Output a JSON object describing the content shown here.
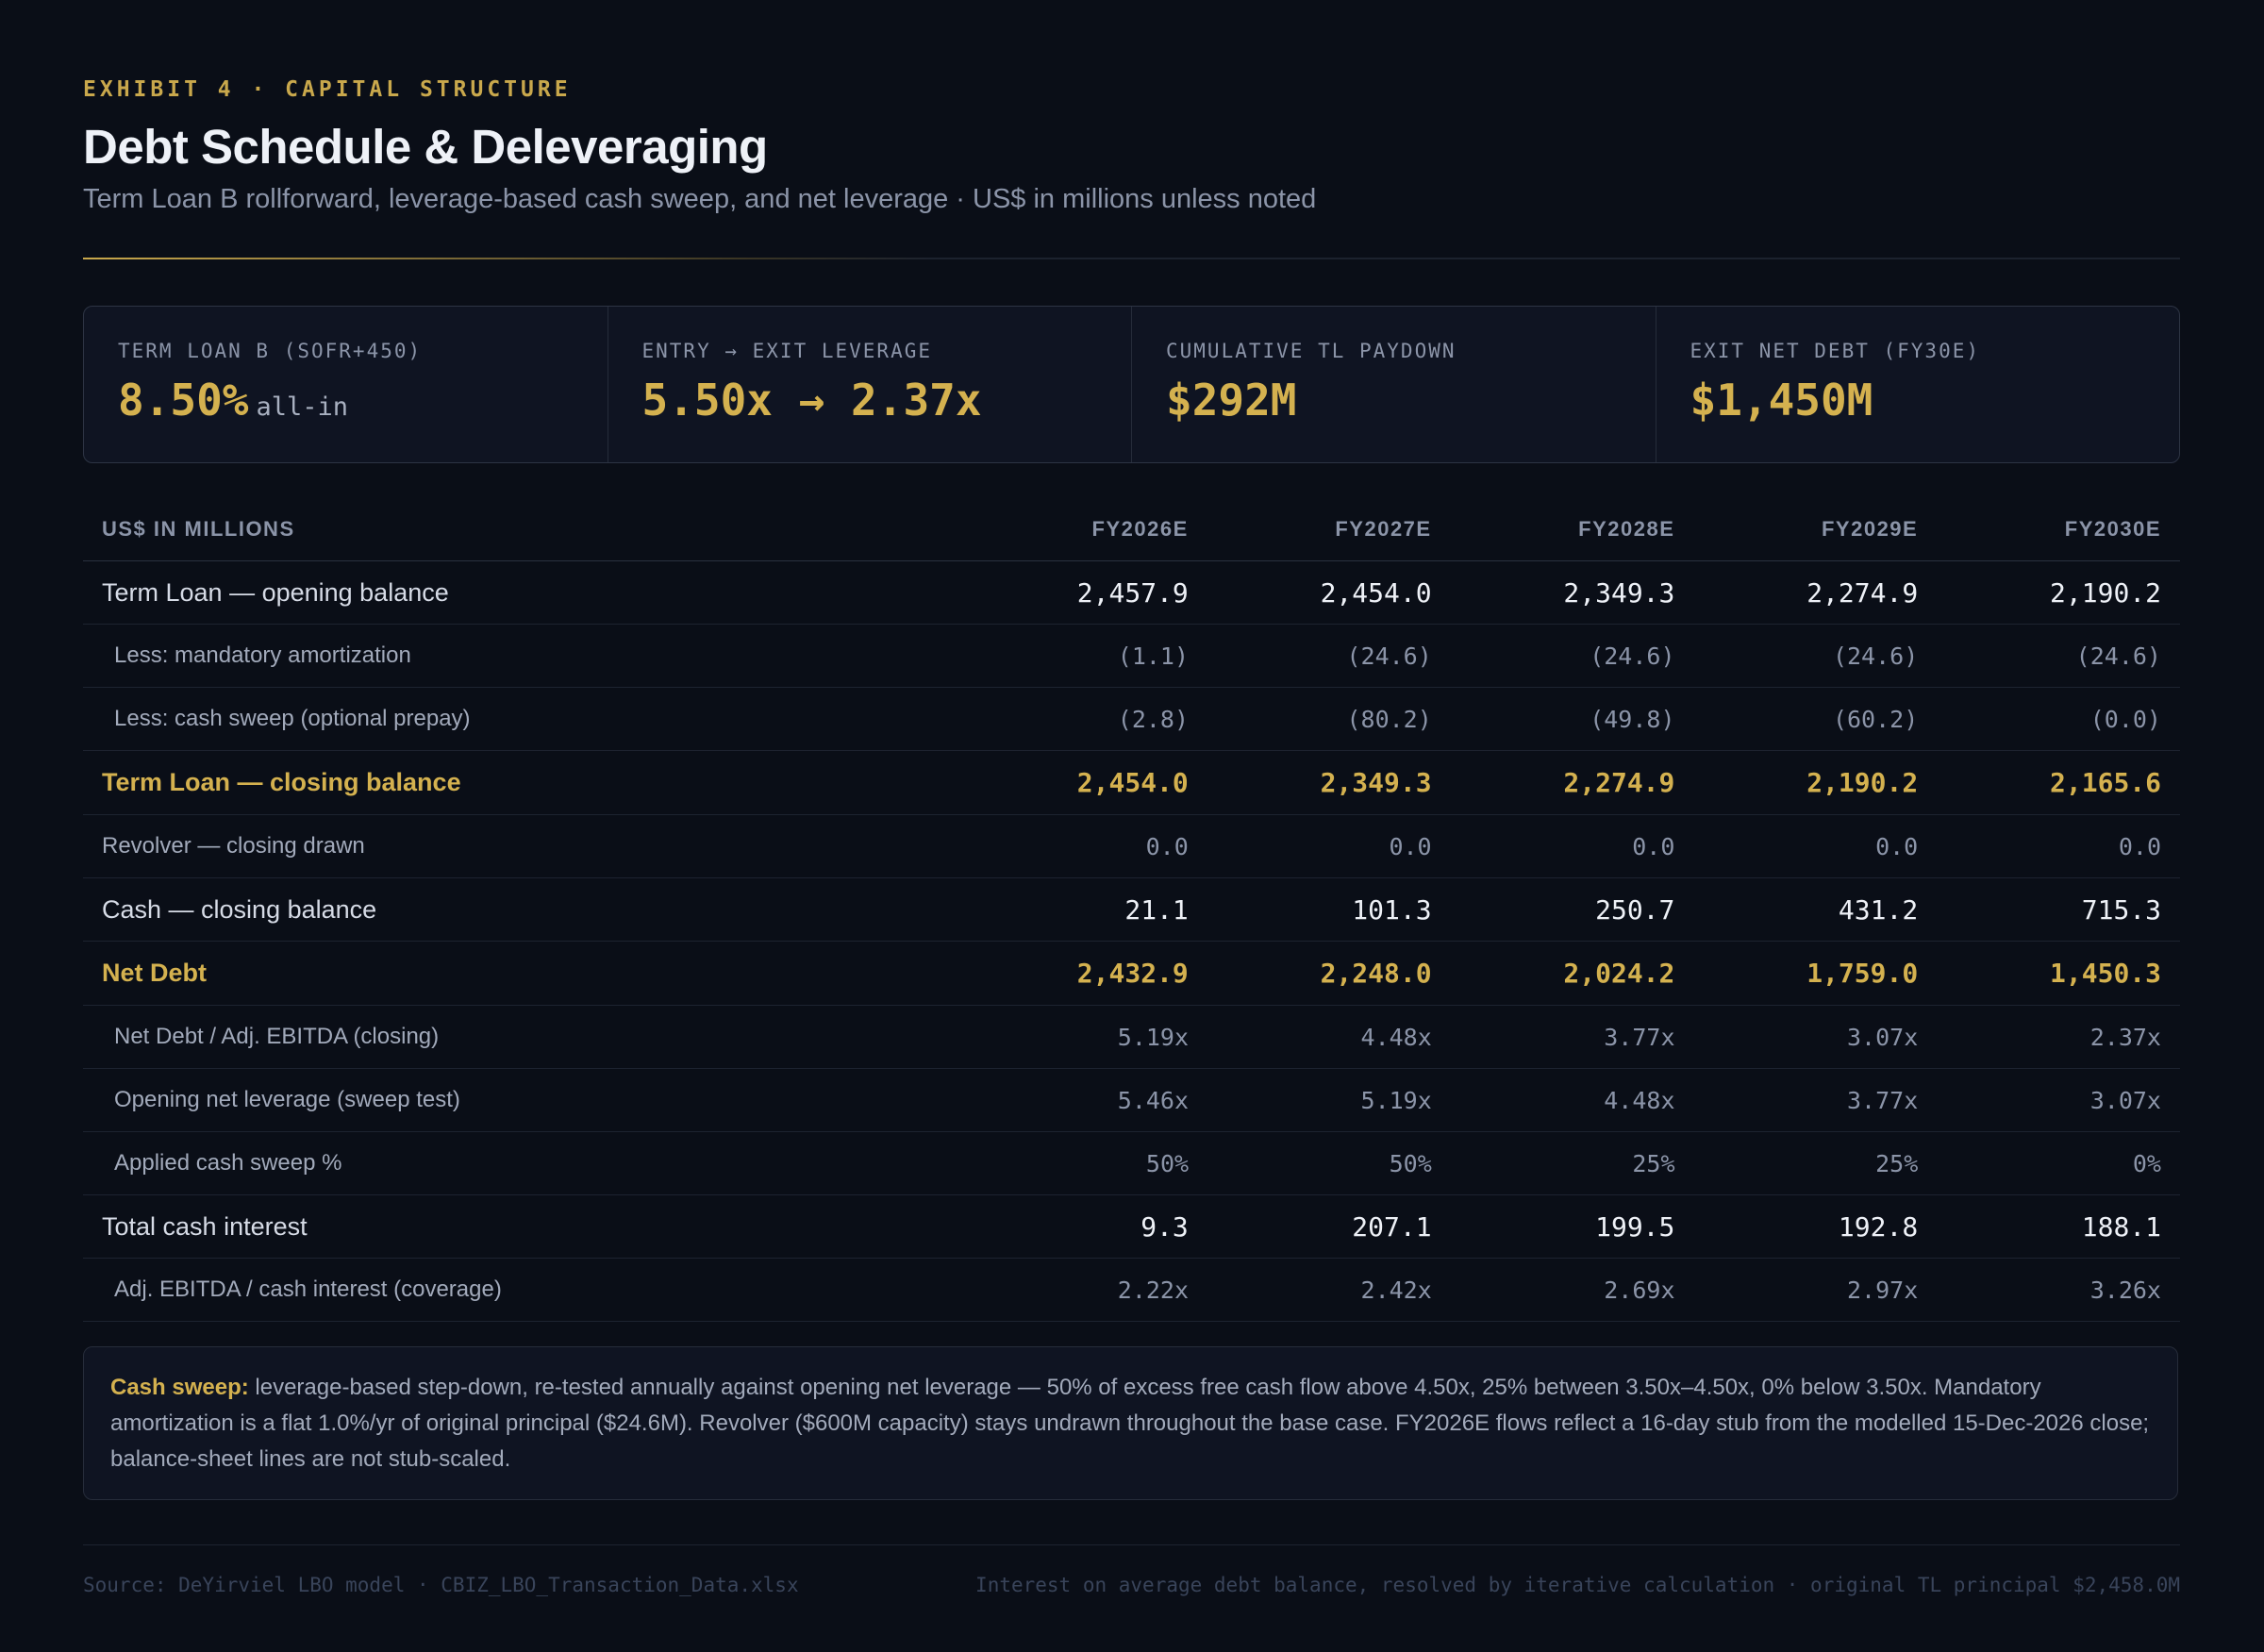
{
  "header": {
    "eyebrow": "EXHIBIT 4 · CAPITAL STRUCTURE",
    "title": "Debt Schedule & Deleveraging",
    "subtitle": "Term Loan B rollforward, leverage-based cash sweep, and net leverage · US$ in millions unless noted"
  },
  "kpis": [
    {
      "label": "TERM LOAN B (SOFR+450)",
      "value": "8.50%",
      "unit": "all-in"
    },
    {
      "label": "ENTRY → EXIT LEVERAGE",
      "value": "5.50x → 2.37x",
      "unit": ""
    },
    {
      "label": "CUMULATIVE TL PAYDOWN",
      "value": "$292M",
      "unit": ""
    },
    {
      "label": "EXIT NET DEBT (FY30E)",
      "value": "$1,450M",
      "unit": ""
    }
  ],
  "table": {
    "header_label": "US$ IN MILLIONS",
    "years": [
      "FY2026E",
      "FY2027E",
      "FY2028E",
      "FY2029E",
      "FY2030E"
    ],
    "rows": [
      {
        "label": "Term Loan — opening balance",
        "style": "primary",
        "values": [
          "2,457.9",
          "2,454.0",
          "2,349.3",
          "2,274.9",
          "2,190.2"
        ]
      },
      {
        "label": "Less: mandatory amortization",
        "style": "sub",
        "values": [
          "(1.1)",
          "(24.6)",
          "(24.6)",
          "(24.6)",
          "(24.6)"
        ]
      },
      {
        "label": "Less: cash sweep (optional prepay)",
        "style": "sub",
        "values": [
          "(2.8)",
          "(80.2)",
          "(49.8)",
          "(60.2)",
          "(0.0)"
        ]
      },
      {
        "label": "Term Loan — closing balance",
        "style": "total",
        "values": [
          "2,454.0",
          "2,349.3",
          "2,274.9",
          "2,190.2",
          "2,165.6"
        ]
      },
      {
        "label": "Revolver — closing drawn",
        "style": "muted",
        "values": [
          "0.0",
          "0.0",
          "0.0",
          "0.0",
          "0.0"
        ]
      },
      {
        "label": "Cash — closing balance",
        "style": "primary",
        "values": [
          "21.1",
          "101.3",
          "250.7",
          "431.2",
          "715.3"
        ]
      },
      {
        "label": "Net Debt",
        "style": "total",
        "values": [
          "2,432.9",
          "2,248.0",
          "2,024.2",
          "1,759.0",
          "1,450.3"
        ]
      },
      {
        "label": "Net Debt / Adj. EBITDA (closing)",
        "style": "sub",
        "values": [
          "5.19x",
          "4.48x",
          "3.77x",
          "3.07x",
          "2.37x"
        ]
      },
      {
        "label": "Opening net leverage (sweep test)",
        "style": "sub",
        "values": [
          "5.46x",
          "5.19x",
          "4.48x",
          "3.77x",
          "3.07x"
        ]
      },
      {
        "label": "Applied cash sweep %",
        "style": "sub",
        "values": [
          "50%",
          "50%",
          "25%",
          "25%",
          "0%"
        ]
      },
      {
        "label": "Total cash interest",
        "style": "primary",
        "values": [
          "9.3",
          "207.1",
          "199.5",
          "192.8",
          "188.1"
        ]
      },
      {
        "label": "Adj. EBITDA / cash interest (coverage)",
        "style": "sub",
        "values": [
          "2.22x",
          "2.42x",
          "2.69x",
          "2.97x",
          "3.26x"
        ]
      }
    ]
  },
  "note": {
    "lead": "Cash sweep:",
    "text": " leverage-based step-down, re-tested annually against opening net leverage — 50% of excess free cash flow above 4.50x, 25% between 3.50x–4.50x, 0% below 3.50x. Mandatory amortization is a flat 1.0%/yr of original principal ($24.6M). Revolver ($600M capacity) stays undrawn throughout the base case. FY2026E flows reflect a 16-day stub from the modelled 15-Dec-2026 close; balance-sheet lines are not stub-scaled."
  },
  "footer": {
    "source": "Source: DeYirviel LBO model · CBIZ_LBO_Transaction_Data.xlsx",
    "method": "Interest on average debt balance, resolved by iterative calculation · original TL principal $2,458.0M"
  }
}
